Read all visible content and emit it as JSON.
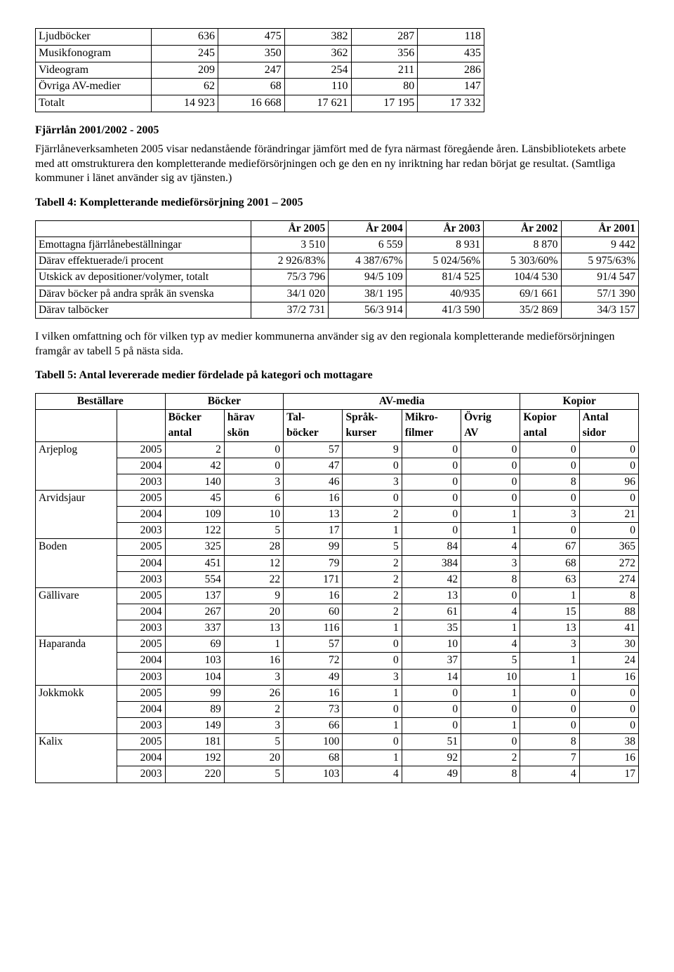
{
  "table1": {
    "rows": [
      {
        "label": "Ljudböcker",
        "v": [
          "636",
          "475",
          "382",
          "287",
          "118"
        ]
      },
      {
        "label": "Musikfonogram",
        "v": [
          "245",
          "350",
          "362",
          "356",
          "435"
        ]
      },
      {
        "label": "Videogram",
        "v": [
          "209",
          "247",
          "254",
          "211",
          "286"
        ]
      },
      {
        "label": "Övriga AV-medier",
        "v": [
          "62",
          "68",
          "110",
          "80",
          "147"
        ]
      },
      {
        "label": "Totalt",
        "v": [
          "14 923",
          "16 668",
          "17 621",
          "17 195",
          "17 332"
        ]
      }
    ]
  },
  "section1": {
    "heading": "Fjärrlån 2001/2002 - 2005",
    "para": "Fjärrlåneverksamheten 2005 visar nedanstående förändringar jämfört med de fyra närmast föregående åren. Länsbibliotekets arbete med att omstrukturera den kompletterande medieförsörjningen och ge den en ny inriktning har redan börjat ge resultat. (Samtliga kommuner i länet använder sig av tjänsten.)",
    "t4_caption": "Tabell 4: Kompletterande medieförsörjning 2001 – 2005"
  },
  "table4": {
    "headers": [
      "",
      "År 2005",
      "År 2004",
      "År 2003",
      "År 2002",
      "År 2001"
    ],
    "rows": [
      {
        "label": "Emottagna fjärrlånebeställningar",
        "v": [
          "3 510",
          "6 559",
          "8 931",
          "8 870",
          "9 442"
        ]
      },
      {
        "label": "Därav effektuerade/i procent",
        "v": [
          "2 926/83%",
          "4 387/67%",
          "5 024/56%",
          "5 303/60%",
          "5 975/63%"
        ]
      },
      {
        "label": "Utskick av depositioner/volymer, totalt",
        "v": [
          "75/3 796",
          "94/5 109",
          "81/4 525",
          "104/4 530",
          "91/4 547"
        ]
      },
      {
        "label": "Därav böcker på andra språk än svenska",
        "v": [
          "34/1 020",
          "38/1 195",
          "40/935",
          "69/1 661",
          "57/1 390"
        ]
      },
      {
        "label": "Därav talböcker",
        "v": [
          "37/2 731",
          "56/3 914",
          "41/3 590",
          "35/2 869",
          "34/3 157"
        ]
      }
    ],
    "post_para": "I vilken omfattning och för vilken typ av medier kommunerna använder sig av den regionala kompletterande medieförsörjningen framgår av tabell 5 på nästa sida.",
    "t5_caption": "Tabell 5: Antal levererade medier fördelade på kategori och mottagare"
  },
  "table5": {
    "topHeaders": [
      "Beställare",
      "Böcker",
      "AV-media",
      "Kopior"
    ],
    "subHeaders1": [
      "",
      "",
      "Böcker",
      "härav",
      "Tal-",
      "Språk-",
      "Mikro-",
      "Övrig",
      "Kopior",
      "Antal"
    ],
    "subHeaders2": [
      "",
      "",
      "antal",
      "skön",
      "böcker",
      "kurser",
      "filmer",
      "AV",
      "antal",
      "sidor"
    ],
    "groups": [
      {
        "name": "Arjeplog",
        "rows": [
          {
            "year": "2005",
            "v": [
              "2",
              "0",
              "57",
              "9",
              "0",
              "0",
              "0",
              "0"
            ]
          },
          {
            "year": "2004",
            "v": [
              "42",
              "0",
              "47",
              "0",
              "0",
              "0",
              "0",
              "0"
            ]
          },
          {
            "year": "2003",
            "v": [
              "140",
              "3",
              "46",
              "3",
              "0",
              "0",
              "8",
              "96"
            ]
          }
        ]
      },
      {
        "name": "Arvidsjaur",
        "rows": [
          {
            "year": "2005",
            "v": [
              "45",
              "6",
              "16",
              "0",
              "0",
              "0",
              "0",
              "0"
            ]
          },
          {
            "year": "2004",
            "v": [
              "109",
              "10",
              "13",
              "2",
              "0",
              "1",
              "3",
              "21"
            ]
          },
          {
            "year": "2003",
            "v": [
              "122",
              "5",
              "17",
              "1",
              "0",
              "1",
              "0",
              "0"
            ]
          }
        ]
      },
      {
        "name": "Boden",
        "rows": [
          {
            "year": "2005",
            "v": [
              "325",
              "28",
              "99",
              "5",
              "84",
              "4",
              "67",
              "365"
            ]
          },
          {
            "year": "2004",
            "v": [
              "451",
              "12",
              "79",
              "2",
              "384",
              "3",
              "68",
              "272"
            ]
          },
          {
            "year": "2003",
            "v": [
              "554",
              "22",
              "171",
              "2",
              "42",
              "8",
              "63",
              "274"
            ]
          }
        ]
      },
      {
        "name": "Gällivare",
        "rows": [
          {
            "year": "2005",
            "v": [
              "137",
              "9",
              "16",
              "2",
              "13",
              "0",
              "1",
              "8"
            ]
          },
          {
            "year": "2004",
            "v": [
              "267",
              "20",
              "60",
              "2",
              "61",
              "4",
              "15",
              "88"
            ]
          },
          {
            "year": "2003",
            "v": [
              "337",
              "13",
              "116",
              "1",
              "35",
              "1",
              "13",
              "41"
            ]
          }
        ]
      },
      {
        "name": "Haparanda",
        "rows": [
          {
            "year": "2005",
            "v": [
              "69",
              "1",
              "57",
              "0",
              "10",
              "4",
              "3",
              "30"
            ]
          },
          {
            "year": "2004",
            "v": [
              "103",
              "16",
              "72",
              "0",
              "37",
              "5",
              "1",
              "24"
            ]
          },
          {
            "year": "2003",
            "v": [
              "104",
              "3",
              "49",
              "3",
              "14",
              "10",
              "1",
              "16"
            ]
          }
        ]
      },
      {
        "name": "Jokkmokk",
        "rows": [
          {
            "year": "2005",
            "v": [
              "99",
              "26",
              "16",
              "1",
              "0",
              "1",
              "0",
              "0"
            ]
          },
          {
            "year": "2004",
            "v": [
              "89",
              "2",
              "73",
              "0",
              "0",
              "0",
              "0",
              "0"
            ]
          },
          {
            "year": "2003",
            "v": [
              "149",
              "3",
              "66",
              "1",
              "0",
              "1",
              "0",
              "0"
            ]
          }
        ]
      },
      {
        "name": "Kalix",
        "rows": [
          {
            "year": "2005",
            "v": [
              "181",
              "5",
              "100",
              "0",
              "51",
              "0",
              "8",
              "38"
            ]
          },
          {
            "year": "2004",
            "v": [
              "192",
              "20",
              "68",
              "1",
              "92",
              "2",
              "7",
              "16"
            ]
          },
          {
            "year": "2003",
            "v": [
              "220",
              "5",
              "103",
              "4",
              "49",
              "8",
              "4",
              "17"
            ]
          }
        ]
      }
    ]
  }
}
